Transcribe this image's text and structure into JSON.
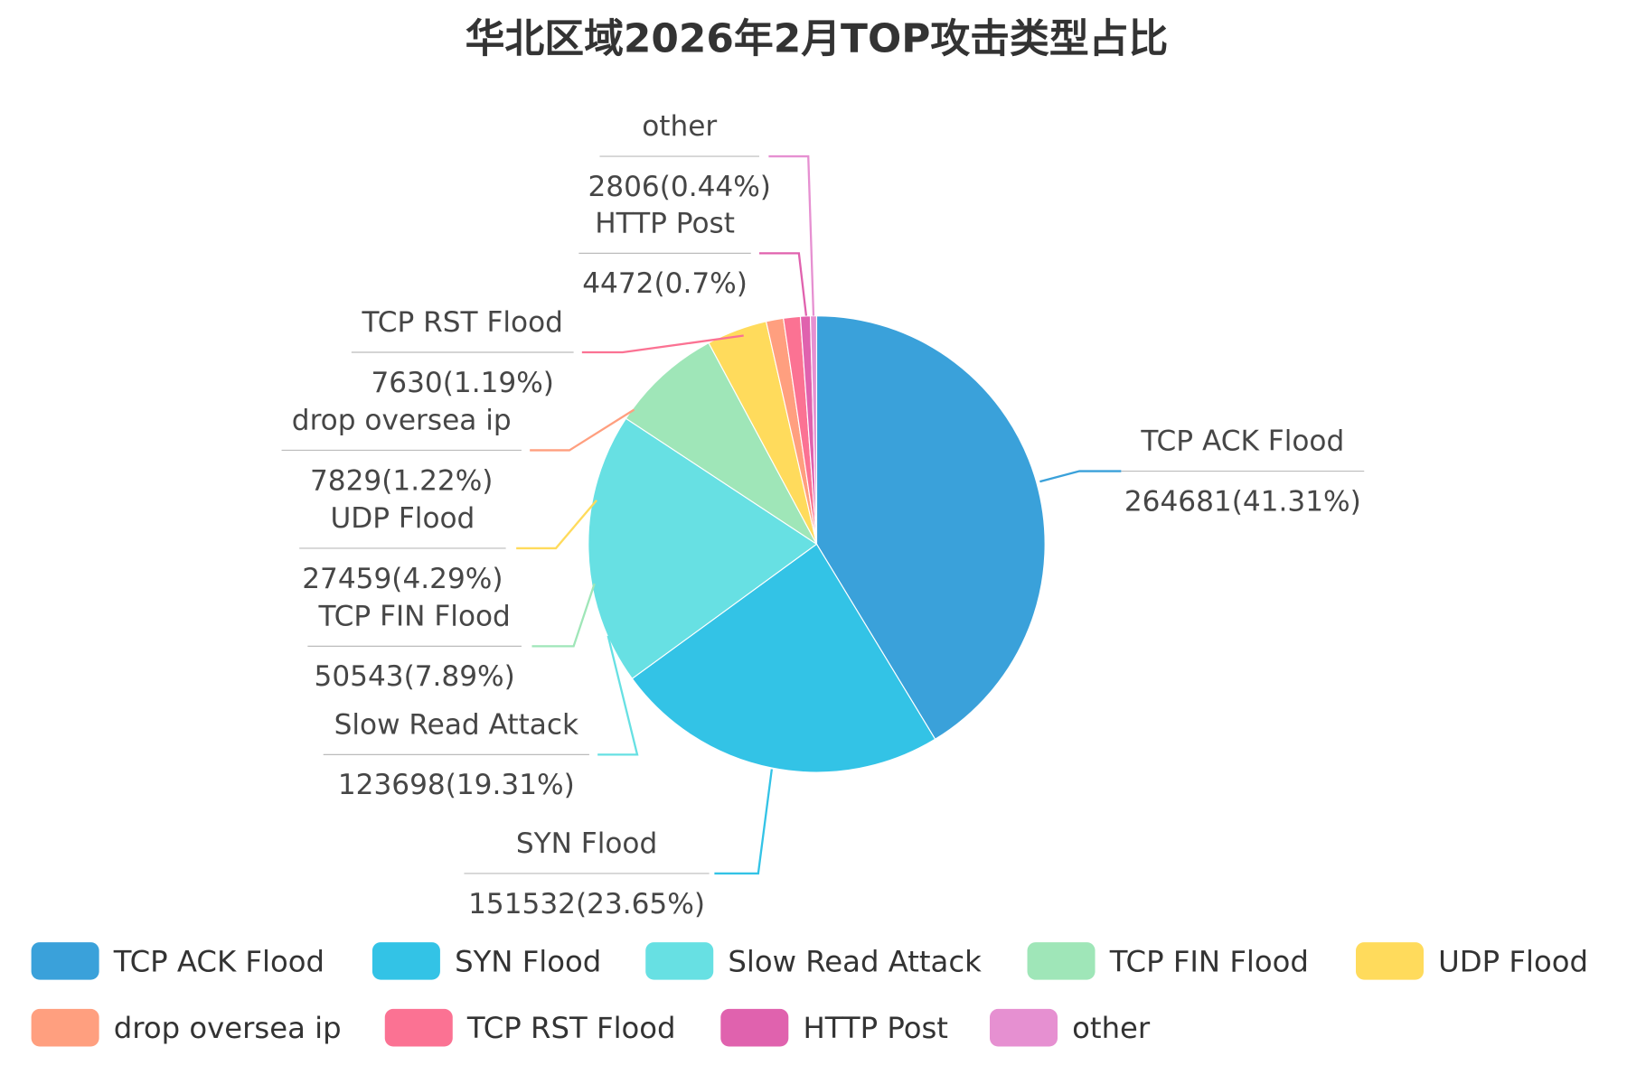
{
  "chart_data": {
    "type": "pie",
    "title": "华北区域2026年2月TOP攻击类型占比",
    "start": "top",
    "direction": "clockwise",
    "legend_position": "bottom",
    "slices": [
      {
        "name": "TCP ACK Flood",
        "value": 264681,
        "percent": 41.31,
        "label_value": "264681(41.31%)",
        "color": "#3aa1da"
      },
      {
        "name": "SYN Flood",
        "value": 151532,
        "percent": 23.65,
        "label_value": "151532(23.65%)",
        "color": "#33c3e6"
      },
      {
        "name": "Slow Read Attack",
        "value": 123698,
        "percent": 19.31,
        "label_value": "123698(19.31%)",
        "color": "#67e0e3"
      },
      {
        "name": "TCP FIN Flood",
        "value": 50543,
        "percent": 7.89,
        "label_value": "50543(7.89%)",
        "color": "#9fe6b8"
      },
      {
        "name": "UDP Flood",
        "value": 27459,
        "percent": 4.29,
        "label_value": "27459(4.29%)",
        "color": "#ffdb5c"
      },
      {
        "name": "drop oversea ip",
        "value": 7829,
        "percent": 1.22,
        "label_value": "7829(1.22%)",
        "color": "#ff9f7f"
      },
      {
        "name": "TCP RST Flood",
        "value": 7630,
        "percent": 1.19,
        "label_value": "7630(1.19%)",
        "color": "#fb7293"
      },
      {
        "name": "HTTP Post",
        "value": 4472,
        "percent": 0.7,
        "label_value": "4472(0.7%)",
        "color": "#e062ae"
      },
      {
        "name": "other",
        "value": 2806,
        "percent": 0.44,
        "label_value": "2806(0.44%)",
        "color": "#e690d1"
      }
    ]
  }
}
